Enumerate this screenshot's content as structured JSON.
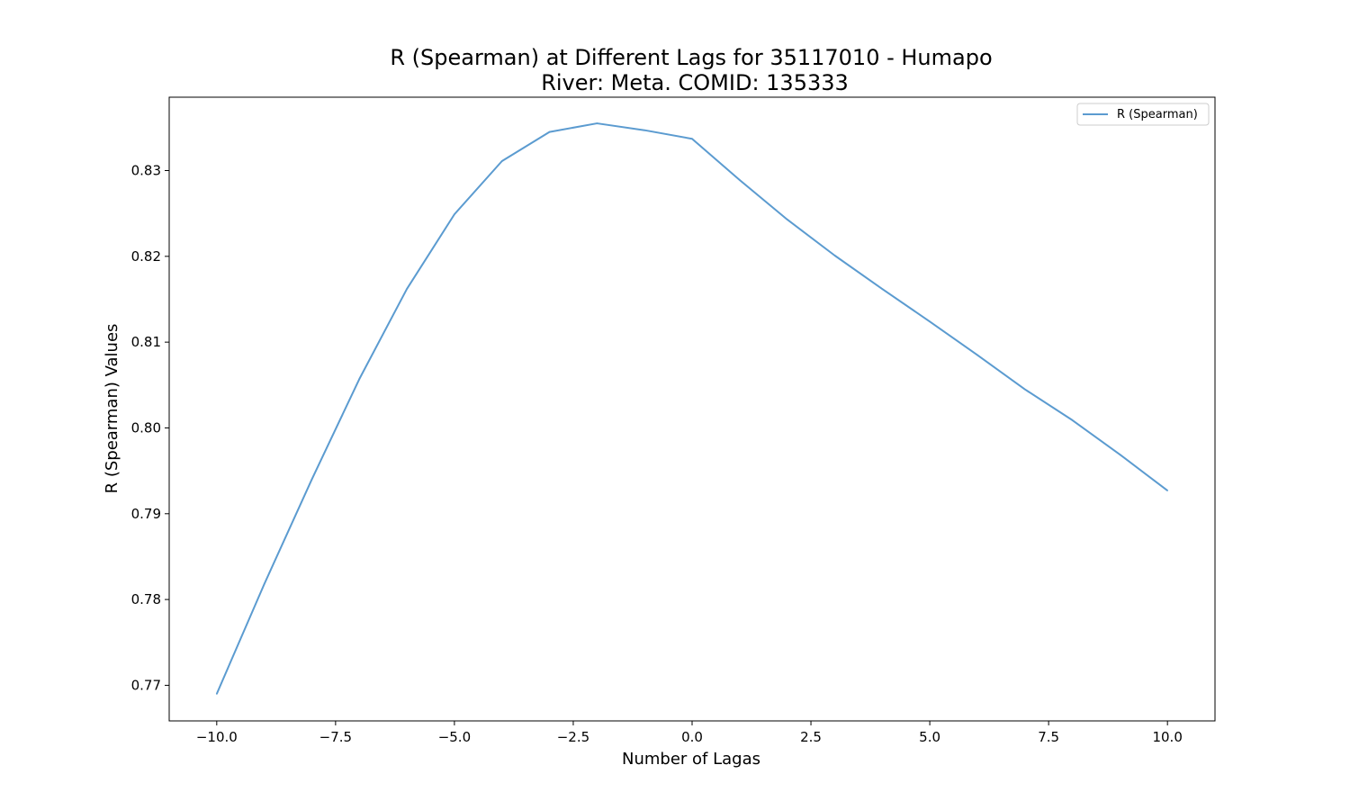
{
  "chart_data": {
    "type": "line",
    "title": "R (Spearman) at Different Lags for 35117010 - Humapo",
    "subtitle": "River: Meta. COMID: 135333",
    "xlabel": "Number of Lagas",
    "ylabel": "R (Spearman) Values",
    "x": [
      -10,
      -9,
      -8,
      -7,
      -6,
      -5,
      -4,
      -3,
      -2,
      -1,
      0,
      1,
      2,
      3,
      4,
      5,
      6,
      7,
      8,
      9,
      10
    ],
    "series": [
      {
        "name": "R (Spearman)",
        "color": "#5b9bd0",
        "values": [
          0.769,
          0.7818,
          0.794,
          0.8057,
          0.8162,
          0.8249,
          0.8311,
          0.8345,
          0.8355,
          0.8347,
          0.8337,
          0.8289,
          0.8243,
          0.8201,
          0.8162,
          0.8124,
          0.8085,
          0.8045,
          0.8009,
          0.7969,
          0.7927
        ]
      }
    ],
    "xlim": [
      -11,
      11
    ],
    "ylim": [
      0.76585,
      0.83855
    ],
    "xticks": [
      -10.0,
      -7.5,
      -5.0,
      -2.5,
      0.0,
      2.5,
      5.0,
      7.5,
      10.0
    ],
    "xtick_labels": [
      "−10.0",
      "−7.5",
      "−5.0",
      "−2.5",
      "0.0",
      "2.5",
      "5.0",
      "7.5",
      "10.0"
    ],
    "yticks": [
      0.77,
      0.78,
      0.79,
      0.8,
      0.81,
      0.82,
      0.83
    ],
    "ytick_labels": [
      "0.77",
      "0.78",
      "0.79",
      "0.80",
      "0.81",
      "0.82",
      "0.83"
    ],
    "grid": false,
    "legend_position": "top-right"
  }
}
